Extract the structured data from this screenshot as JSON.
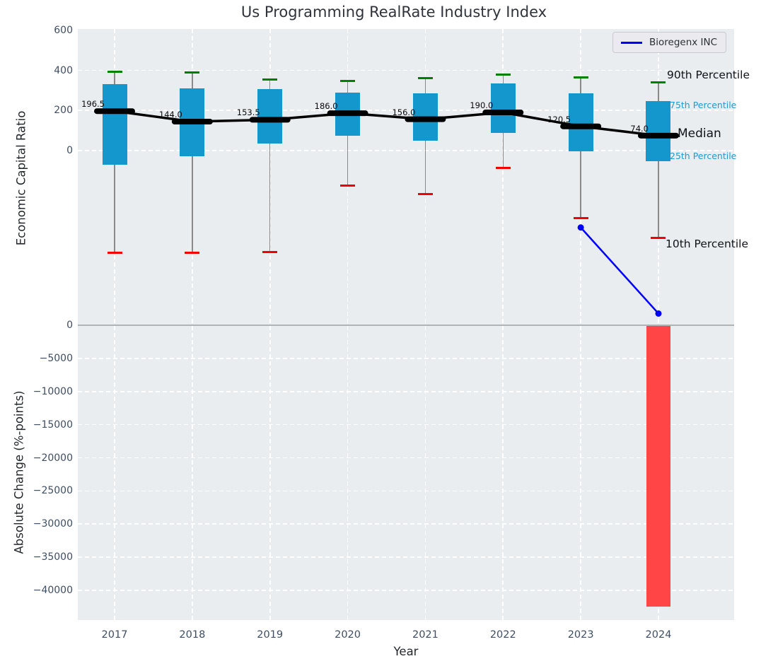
{
  "title": "Us Programming RealRate Industry Index",
  "legend": {
    "label": "Bioregenx INC"
  },
  "annotations": {
    "p90": "90th Percentile",
    "p75": "75th Percentile",
    "median": "Median",
    "p25": "25th Percentile",
    "p10": "10th Percentile"
  },
  "axes": {
    "top": {
      "ylabel": "Economic Capital Ratio",
      "ticks": [
        {
          "value": 600,
          "label": "600"
        },
        {
          "value": 400,
          "label": "400"
        },
        {
          "value": 200,
          "label": "200"
        },
        {
          "value": 0,
          "label": "0"
        }
      ]
    },
    "bottom": {
      "ylabel": "Absolute Change (%-points)",
      "ticks": [
        {
          "value": 0,
          "label": "0"
        },
        {
          "value": -5000,
          "label": "−5000"
        },
        {
          "value": -10000,
          "label": "−10000"
        },
        {
          "value": -15000,
          "label": "−15000"
        },
        {
          "value": -20000,
          "label": "−20000"
        },
        {
          "value": -25000,
          "label": "−25000"
        },
        {
          "value": -30000,
          "label": "−30000"
        },
        {
          "value": -35000,
          "label": "−35000"
        },
        {
          "value": -40000,
          "label": "−40000"
        }
      ]
    },
    "x": {
      "label": "Year",
      "ticks": [
        "2017",
        "2018",
        "2019",
        "2020",
        "2021",
        "2022",
        "2023",
        "2024"
      ]
    }
  },
  "chart_data": {
    "type": "boxplot+line+bar",
    "title": "Us Programming RealRate Industry Index",
    "categories": [
      2017,
      2018,
      2019,
      2020,
      2021,
      2022,
      2023,
      2024
    ],
    "top_panel": {
      "ylabel": "Economic Capital Ratio",
      "ylim": [
        -875,
        600
      ],
      "grid": true,
      "boxes": [
        {
          "year": 2017,
          "p10": -510,
          "p25": -72,
          "median": 196.5,
          "p75": 330,
          "p90": 395
        },
        {
          "year": 2018,
          "p10": -510,
          "p25": -30,
          "median": 144.0,
          "p75": 312,
          "p90": 388
        },
        {
          "year": 2019,
          "p10": -508,
          "p25": 35,
          "median": 153.5,
          "p75": 308,
          "p90": 356
        },
        {
          "year": 2020,
          "p10": -175,
          "p25": 72,
          "median": 186.0,
          "p75": 288,
          "p90": 346
        },
        {
          "year": 2021,
          "p10": -218,
          "p25": 50,
          "median": 156.0,
          "p75": 285,
          "p90": 362
        },
        {
          "year": 2022,
          "p10": -86,
          "p25": 88,
          "median": 190.0,
          "p75": 335,
          "p90": 380
        },
        {
          "year": 2023,
          "p10": -338,
          "p25": -5,
          "median": 120.5,
          "p75": 285,
          "p90": 366
        },
        {
          "year": 2024,
          "p10": -437,
          "p25": -55,
          "median": 74.0,
          "p75": 246,
          "p90": 342
        }
      ],
      "median_labels": [
        "196.5",
        "144.0",
        "153.5",
        "186.0",
        "156.0",
        "190.0",
        "120.5",
        "74.0"
      ],
      "company_series": {
        "name": "Bioregenx INC",
        "points": [
          {
            "year": 2023,
            "value": -385
          },
          {
            "year": 2024,
            "value": -815
          }
        ]
      }
    },
    "bottom_panel": {
      "ylabel": "Absolute Change (%-points)",
      "ylim": [
        -44500,
        600
      ],
      "grid": true,
      "change_bars": [
        {
          "year": 2024,
          "value": -42400
        }
      ]
    },
    "legend_position": "upper right",
    "colors": {
      "box_fill": "#1497cd",
      "whisker": "#8a8a8a",
      "cap_high": "#008000",
      "cap_low": "#f40000",
      "median_marker": "#000000",
      "trend_line": "#000000",
      "company_line": "#0000ff",
      "change_bar": "#ff4545",
      "plot_background": "#e9edf0",
      "grid_line": "#ffffff",
      "percentile_label_blue": "#1e9bd2"
    }
  }
}
